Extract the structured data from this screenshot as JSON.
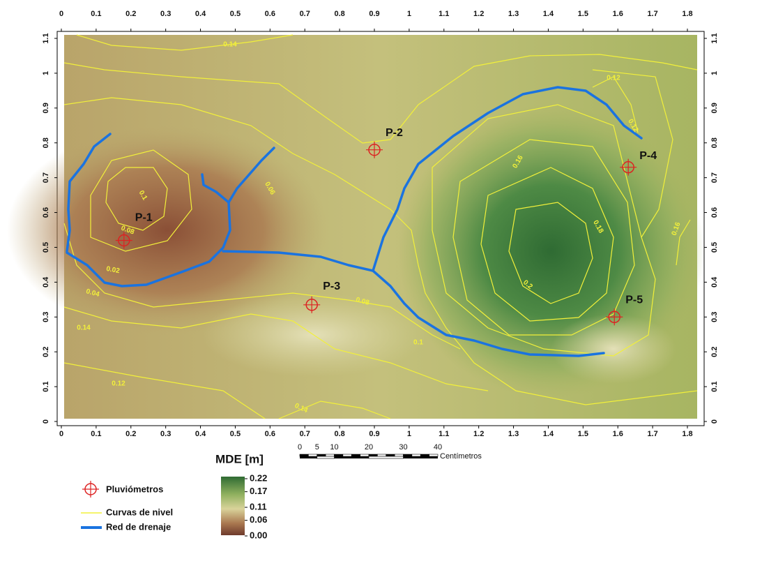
{
  "map": {
    "xticks": [
      0,
      0.1,
      0.2,
      0.3,
      0.4,
      0.5,
      0.6,
      0.7,
      0.8,
      0.9,
      1,
      1.1,
      1.2,
      1.3,
      1.4,
      1.5,
      1.6,
      1.7,
      1.8
    ],
    "yticks": [
      0,
      0.1,
      0.2,
      0.3,
      0.4,
      0.5,
      0.6,
      0.7,
      0.8,
      0.9,
      1,
      1.1
    ],
    "xlim": [
      0,
      1.8
    ],
    "ylim": [
      0,
      1.1
    ],
    "stations": [
      {
        "name": "P-1",
        "x": 0.18,
        "y": 0.52
      },
      {
        "name": "P-2",
        "x": 0.9,
        "y": 0.78
      },
      {
        "name": "P-3",
        "x": 0.72,
        "y": 0.335
      },
      {
        "name": "P-4",
        "x": 1.63,
        "y": 0.73
      },
      {
        "name": "P-5",
        "x": 1.59,
        "y": 0.3
      }
    ],
    "contour_labels": [
      0.14,
      0.12,
      0.1,
      0.08,
      0.06,
      0.02,
      0.04,
      0.08,
      0.1,
      0.16,
      0.18,
      0.2,
      0.16,
      0.12,
      0.14,
      0.12,
      0.14
    ],
    "colorbar": {
      "title": "MDE [m]",
      "ticks": [
        0.22,
        0.17,
        0.11,
        0.06,
        {
          "value": 0,
          "label": "0.00"
        }
      ]
    },
    "scalebar": {
      "ticks": [
        0,
        5,
        10,
        20,
        30,
        40
      ],
      "unit": "Centímetros"
    },
    "legend": {
      "stations": "Pluviómetros",
      "contours": "Curvas de nivel",
      "drainage": "Red de drenaje"
    }
  }
}
